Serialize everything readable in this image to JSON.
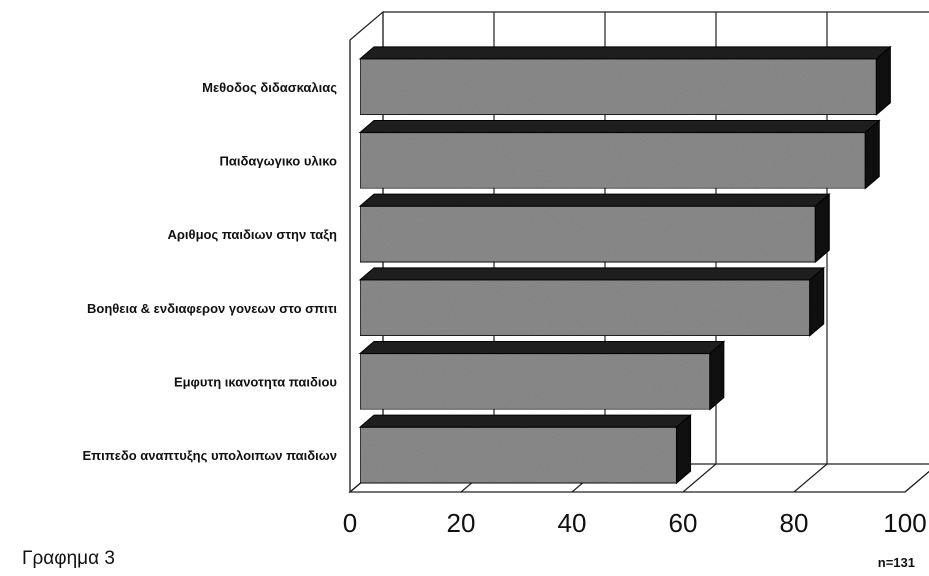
{
  "chart_data": {
    "type": "bar",
    "orientation": "horizontal",
    "categories": [
      "Μεθοδος διδασκαλιας",
      "Παιδαγωγικο υλικο",
      "Αριθμος παιδιων στην ταξη",
      "Βοηθεια & ενδιαφερον γονεων στο σπιτι",
      "Εμφυτη ικανοτητα παιδιου",
      "Επιπεδο αναπτυξης υπολοιπων παιδιων"
    ],
    "values": [
      97,
      95,
      86,
      85,
      67,
      61
    ],
    "xlim": [
      0,
      100
    ],
    "xticks": [
      "0",
      "20",
      "40",
      "60",
      "80",
      "100"
    ],
    "grid": true,
    "style": "3d",
    "colors": {
      "bar_face": "#8c8c8c",
      "bar_top": "#1e1e1e",
      "bar_side": "#0f0f0f"
    }
  },
  "caption": "Γραφημα 3",
  "sample_note": "n=131"
}
